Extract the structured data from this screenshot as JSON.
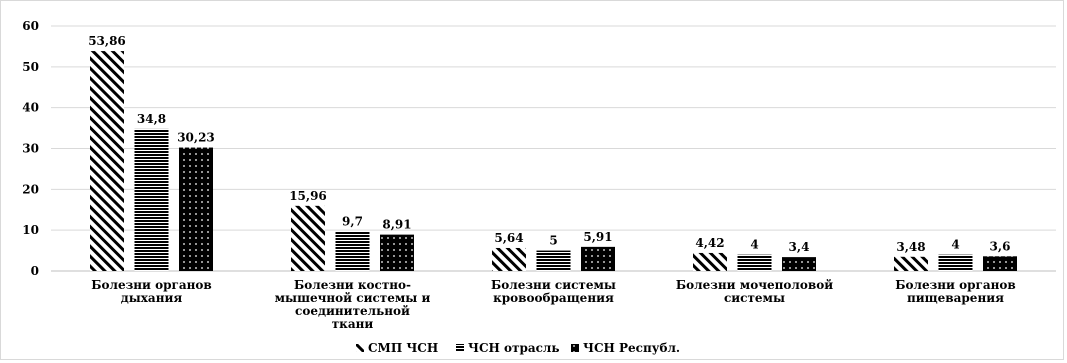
{
  "chart_data": {
    "type": "bar",
    "title": "",
    "xlabel": "",
    "ylabel": "",
    "ylim": [
      0,
      60
    ],
    "yticks": [
      0,
      10,
      20,
      30,
      40,
      50,
      60
    ],
    "grid": true,
    "legend_position": "bottom",
    "categories": [
      [
        "Болезни органов",
        "дыхания"
      ],
      [
        "Болезни костно-",
        "мышечной системы и",
        "соединительной",
        "ткани"
      ],
      [
        "Болезни системы",
        "кровообращения"
      ],
      [
        "Болезни мочеполовой",
        "системы"
      ],
      [
        "Болезни органов",
        "пищеварения"
      ]
    ],
    "series": [
      {
        "name": "СМП ЧСН",
        "pattern": "diagonal-stripes",
        "values": [
          53.86,
          15.96,
          5.64,
          4.42,
          3.48
        ],
        "labels": [
          "53,86",
          "15,96",
          "5,64",
          "4,42",
          "3,48"
        ]
      },
      {
        "name": "ЧСН отрасль",
        "pattern": "horizontal-stripes",
        "values": [
          34.8,
          9.7,
          5,
          4,
          4
        ],
        "labels": [
          "34,8",
          "9,7",
          "5",
          "4",
          "4"
        ]
      },
      {
        "name": "ЧСН Республ.",
        "pattern": "dots-on-black",
        "values": [
          30.23,
          8.91,
          5.91,
          3.4,
          3.6
        ],
        "labels": [
          "30,23",
          "8,91",
          "5,91",
          "3,4",
          "3,6"
        ]
      }
    ]
  }
}
